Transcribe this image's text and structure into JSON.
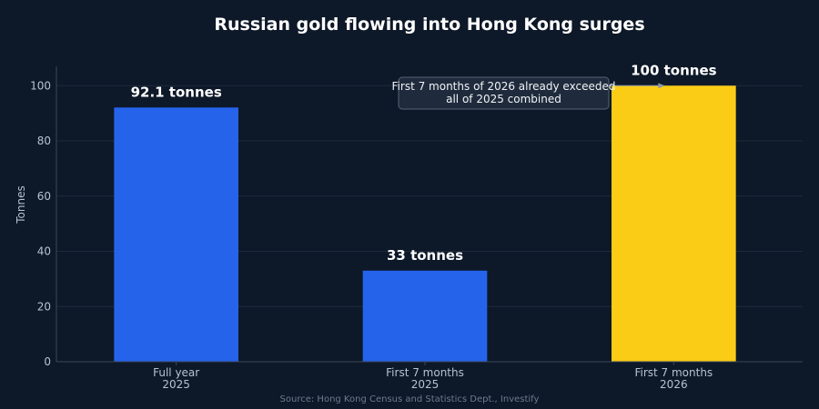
{
  "chart_data": {
    "type": "bar",
    "title": "Russian gold flowing into Hong Kong surges",
    "ylabel": "Tonnes",
    "xlabel": "",
    "ylim": [
      0,
      107
    ],
    "yticks": [
      0,
      20,
      40,
      60,
      80,
      100
    ],
    "grid": true,
    "categories": [
      [
        "Full year",
        "2025"
      ],
      [
        "First 7 months",
        "2025"
      ],
      [
        "First 7 months",
        "2026"
      ]
    ],
    "values": [
      92.1,
      33,
      100
    ],
    "value_labels": [
      "92.1 tonnes",
      "33 tonnes",
      "100 tonnes"
    ],
    "colors": [
      "#2563eb",
      "#2563eb",
      "#facc15"
    ],
    "annotation": {
      "lines": [
        "First 7 months of 2026 already exceeded",
        "all of 2025 combined"
      ],
      "target_category_index": 2,
      "target_value": 100
    },
    "source": "Source: Hong Kong Census and Statistics Dept., Investify"
  },
  "colors": {
    "background": "#0d1828",
    "grid": "#1e2a3c",
    "text": "#ffffff",
    "muted": "#b8c2d0"
  }
}
